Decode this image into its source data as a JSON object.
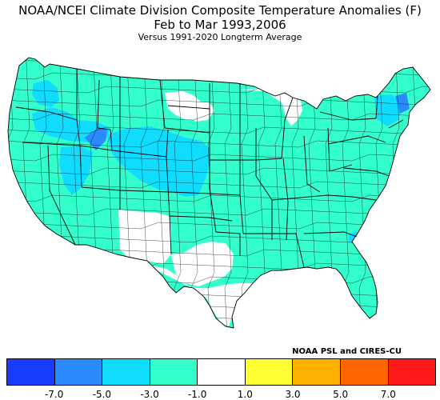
{
  "header": {
    "title": "NOAA/NCEI Climate Division Composite Temperature Anomalies (F)",
    "subtitle": "Feb to Mar  1993,2006",
    "baseline": "Versus 1991-2020 Longterm Average"
  },
  "credit": "NOAA PSL and CIRES-CU",
  "colors": {
    "lt_-7": "#1a3cff",
    "-7_-5": "#2a8bff",
    "-5_-3": "#10dcff",
    "-3_-1": "#33ffcc",
    "-1_1": "#ffffff",
    "1_3": "#ffff33",
    "3_5": "#ffb000",
    "5_7": "#ff6600",
    "gt_7": "#ff1a1a"
  },
  "legend": {
    "bins": [
      "lt_-7",
      "-7_-5",
      "-5_-3",
      "-3_-1",
      "-1_1",
      "1_3",
      "3_5",
      "5_7",
      "gt_7"
    ],
    "ticks": [
      "-7.0",
      "-5.0",
      "-3.0",
      "-1.0",
      "1.0",
      "3.0",
      "5.0",
      "7.0"
    ]
  },
  "map_regions": [
    {
      "name": "pacific-northwest",
      "bin": "-3_-1"
    },
    {
      "name": "washington-cascades",
      "bin": "-5_-3"
    },
    {
      "name": "oregon-interior",
      "bin": "-5_-3"
    },
    {
      "name": "idaho-central",
      "bin": "-7_-5"
    },
    {
      "name": "nevada-utah",
      "bin": "-3_-1"
    },
    {
      "name": "utah-northwest",
      "bin": "-5_-3"
    },
    {
      "name": "wyoming-colorado-nebraska",
      "bin": "-5_-3"
    },
    {
      "name": "montana-north",
      "bin": "-1_1"
    },
    {
      "name": "north-dakota-west",
      "bin": "-1_1"
    },
    {
      "name": "minnesota-wisconsin-north",
      "bin": "-1_1"
    },
    {
      "name": "southwest-new-mexico",
      "bin": "-1_1"
    },
    {
      "name": "west-texas",
      "bin": "-1_1"
    },
    {
      "name": "central-plains-and-east",
      "bin": "-3_-1"
    },
    {
      "name": "vermont-new-hampshire",
      "bin": "-7_-5"
    },
    {
      "name": "new-york-east",
      "bin": "-5_-3"
    },
    {
      "name": "georgia-spot",
      "bin": "-5_-3"
    }
  ]
}
